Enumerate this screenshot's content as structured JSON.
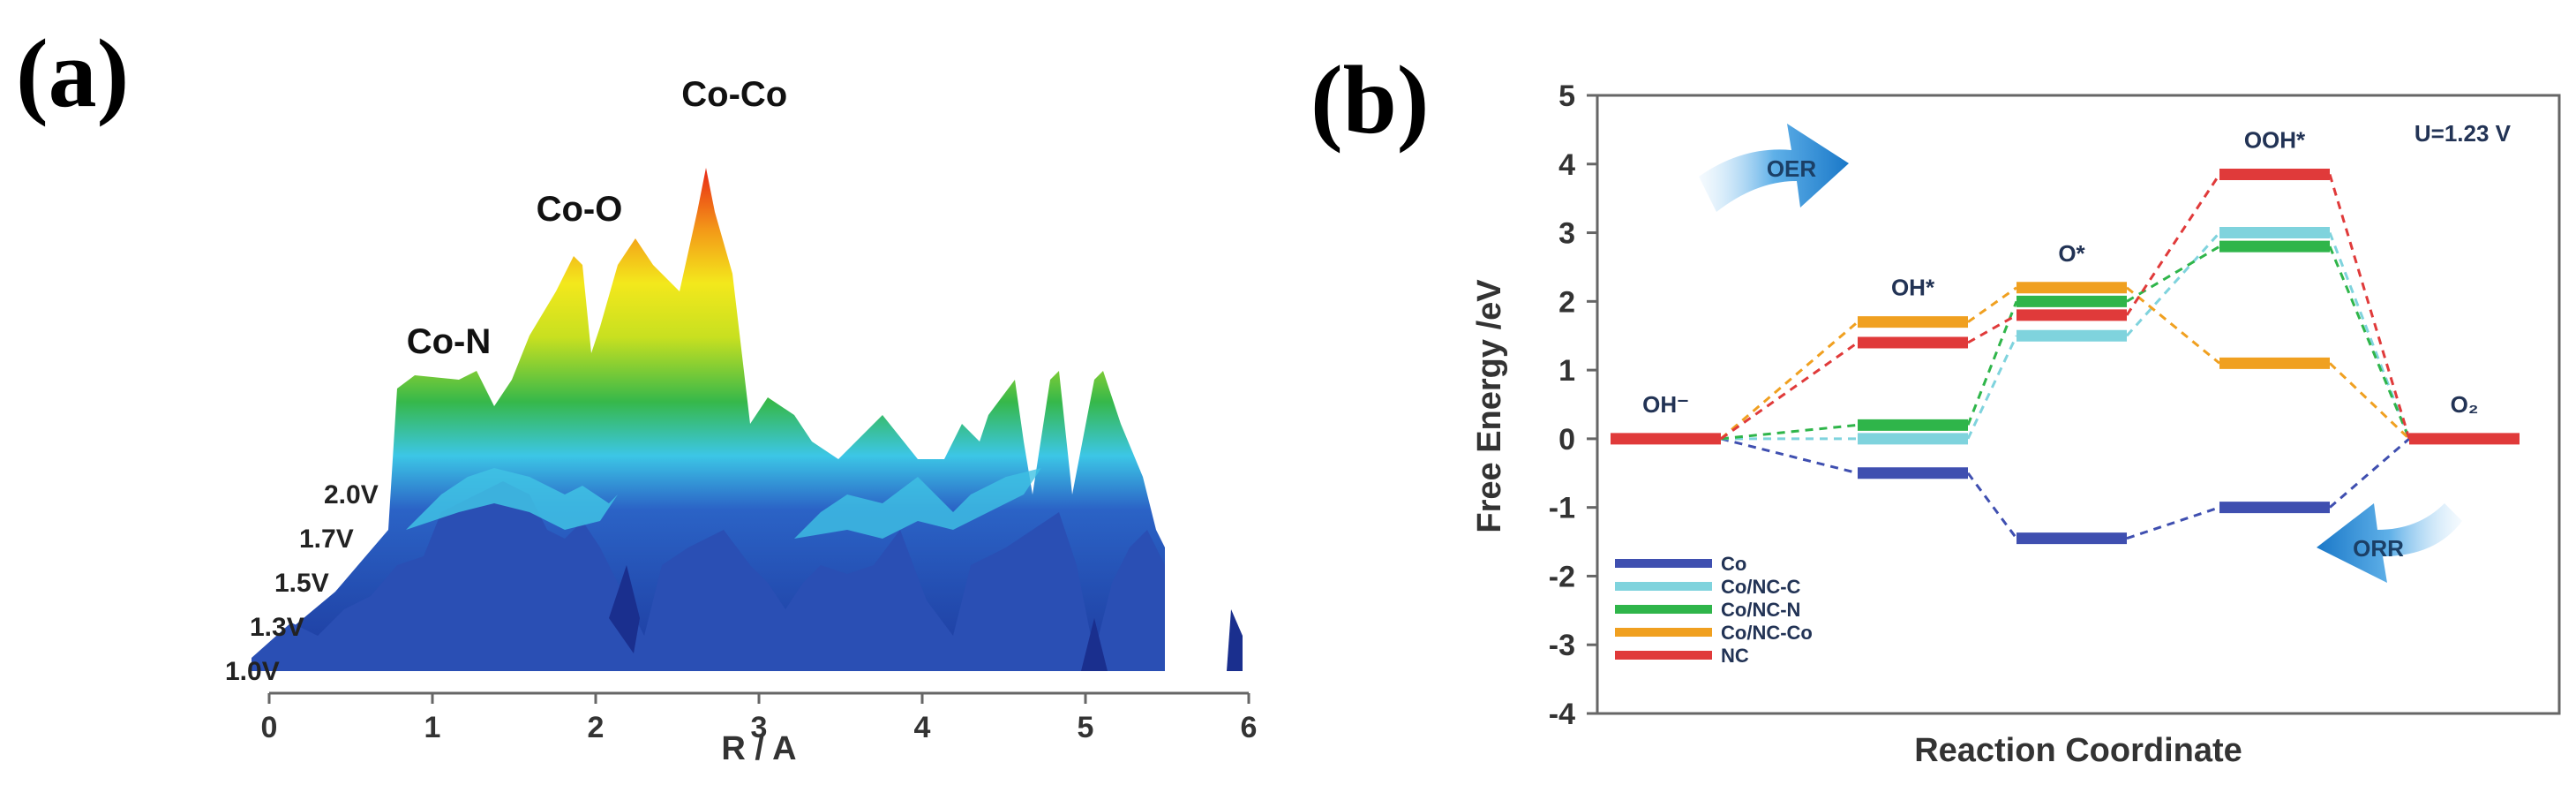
{
  "figure": {
    "panel_a_label": "(a)",
    "panel_b_label": "(b)"
  },
  "chart_data": [
    {
      "type": "area",
      "panel": "(a)",
      "title": "",
      "xlabel": "R / A",
      "ylabel": "",
      "xlim": [
        0,
        6
      ],
      "xticks": [
        "0",
        "1",
        "2",
        "3",
        "4",
        "5",
        "6"
      ],
      "series_labels": [
        "1.0V",
        "1.3V",
        "1.5V",
        "1.7V",
        "2.0V"
      ],
      "peak_labels": [
        {
          "text": "Co-N",
          "x": 1.1
        },
        {
          "text": "Co-O",
          "x": 1.9
        },
        {
          "text": "Co-Co",
          "x": 2.85
        }
      ],
      "colors": {
        "low": "#1e3fa8",
        "mid": "#38c8e8",
        "green": "#33b848",
        "yellow": "#f2e81c",
        "orange": "#f59a18",
        "high": "#e82c16"
      }
    },
    {
      "type": "line",
      "panel": "(b)",
      "title": "",
      "annotation": "U=1.23 V",
      "xlabel": "Reaction Coordinate",
      "ylabel": "Free Energy /eV",
      "ylim": [
        -4,
        5
      ],
      "yticks": [
        "-4",
        "-3",
        "-2",
        "-1",
        "0",
        "1",
        "2",
        "3",
        "4",
        "5"
      ],
      "states": [
        "OH⁻",
        "OH*",
        "O*",
        "OOH*",
        "O₂"
      ],
      "series": [
        {
          "name": "Co",
          "color": "#3f4fb0",
          "values": [
            0,
            -0.5,
            -1.45,
            -1.0,
            0
          ]
        },
        {
          "name": "Co/NC-C",
          "color": "#7fd3dd",
          "values": [
            0,
            0.0,
            1.5,
            3.0,
            0
          ]
        },
        {
          "name": "Co/NC-N",
          "color": "#2fb54a",
          "values": [
            0,
            0.2,
            2.0,
            2.8,
            0
          ]
        },
        {
          "name": "Co/NC-Co",
          "color": "#f0a020",
          "values": [
            0,
            1.7,
            2.2,
            1.1,
            0
          ]
        },
        {
          "name": "NC",
          "color": "#e03a3a",
          "values": [
            0,
            1.4,
            1.8,
            3.85,
            0
          ]
        }
      ],
      "arrows": [
        {
          "text": "OER"
        },
        {
          "text": "ORR"
        }
      ]
    }
  ]
}
